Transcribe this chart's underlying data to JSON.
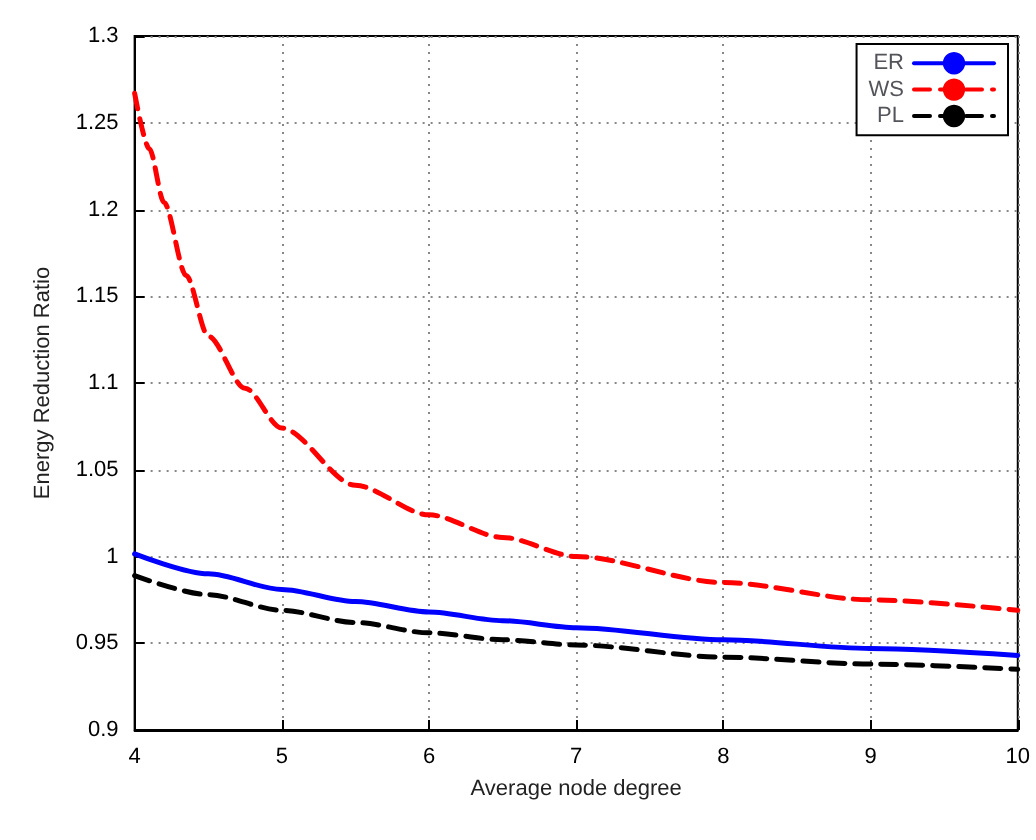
{
  "chart_data": {
    "type": "line",
    "xlabel": "Average node degree",
    "ylabel": "Energy Reduction Ratio",
    "xlim": [
      4,
      10
    ],
    "xticks": [
      4,
      5,
      6,
      7,
      8,
      9,
      10
    ],
    "ylim": [
      0.9,
      1.3
    ],
    "yticks": [
      0.9,
      0.95,
      1,
      1.05,
      1.1,
      1.15,
      1.2,
      1.25,
      1.3
    ],
    "grid": true,
    "legend": "top right",
    "marker": "none",
    "series": [
      {
        "name": "ER",
        "color": "#0000ff",
        "line_style": "solid",
        "x": [
          4,
          4.5,
          5,
          5.5,
          6,
          6.5,
          7,
          8,
          9,
          10
        ],
        "values": [
          1.0015,
          0.99,
          0.981,
          0.974,
          0.968,
          0.963,
          0.959,
          0.952,
          0.947,
          0.943
        ]
      },
      {
        "name": "WS",
        "color": "#ff0000",
        "line_style": "dashed",
        "x": [
          4,
          4.1,
          4.2,
          4.35,
          4.5,
          4.75,
          5,
          5.5,
          6,
          6.5,
          7,
          8,
          9,
          10
        ],
        "values": [
          1.267,
          1.235,
          1.204,
          1.162,
          1.127,
          1.097,
          1.074,
          1.041,
          1.024,
          1.011,
          1.0,
          0.985,
          0.975,
          0.969
        ]
      },
      {
        "name": "PL",
        "color": "#000000",
        "line_style": "dashed",
        "x": [
          4,
          4.5,
          5,
          5.5,
          6,
          6.5,
          7,
          8,
          9,
          10
        ],
        "values": [
          0.989,
          0.978,
          0.969,
          0.962,
          0.956,
          0.952,
          0.949,
          0.942,
          0.938,
          0.935
        ]
      }
    ]
  }
}
